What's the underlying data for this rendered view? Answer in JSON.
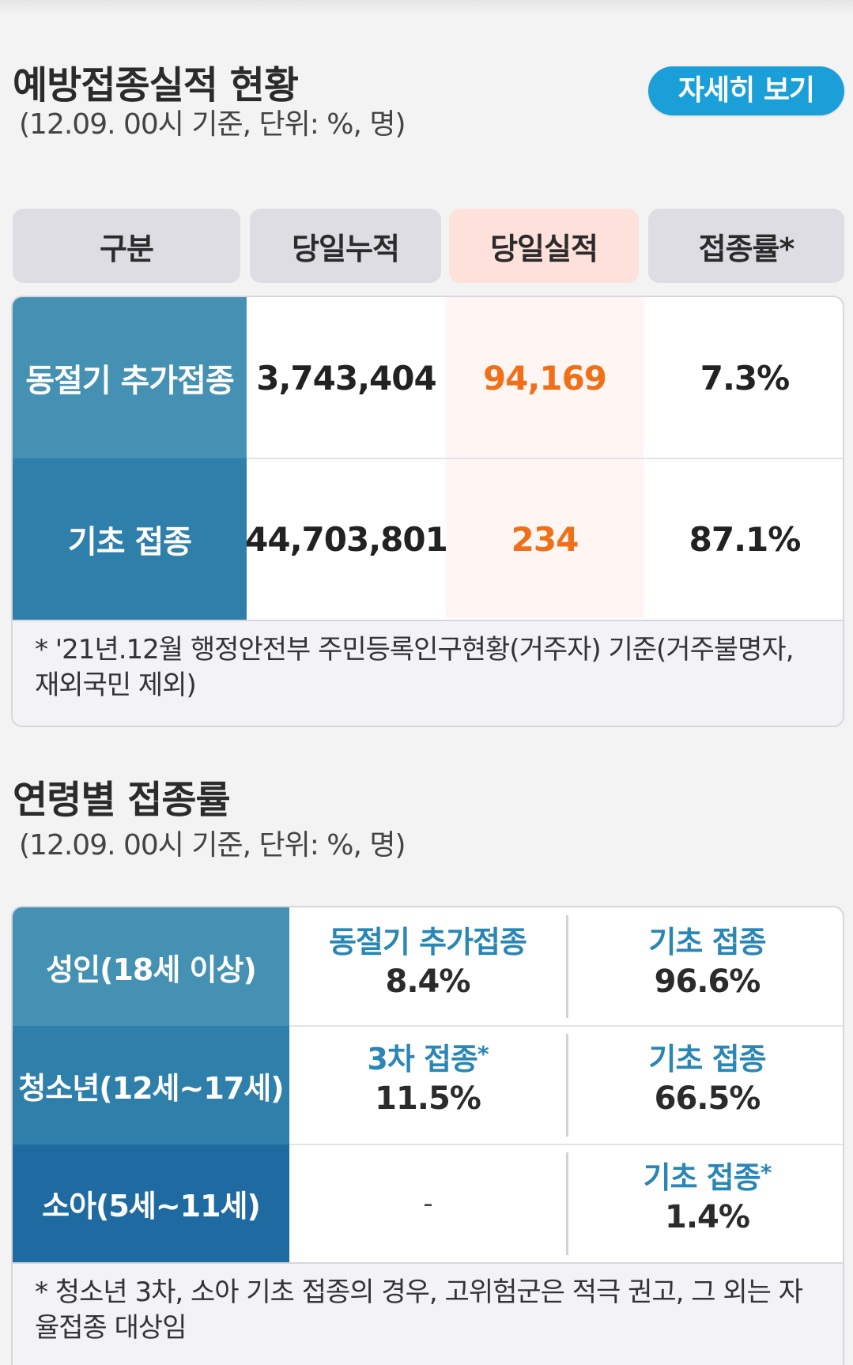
{
  "section1": {
    "title": "예방접종실적 현황",
    "subtitle": "(12.09. 00시 기준, 단위: %, 명)",
    "detail_button": "자세히 보기",
    "headers": [
      "구분",
      "당일누적",
      "당일실적",
      "접종률*"
    ],
    "rows": [
      {
        "label": "동절기 추가접종",
        "cumulative": "3,743,404",
        "today": "94,169",
        "rate": "7.3%"
      },
      {
        "label": "기초 접종",
        "cumulative": "44,703,801",
        "today": "234",
        "rate": "87.1%"
      }
    ],
    "note": "* '21년.12월 행정안전부 주민등록인구현황(거주자) 기준(거주불명자, 재외국민 제외)"
  },
  "section2": {
    "title": "연령별 접종률",
    "subtitle": "(12.09. 00시 기준, 단위: %, 명)",
    "rows": [
      {
        "label": "성인(18세 이상)",
        "col1": {
          "label": "동절기 추가접종",
          "star": "",
          "value": "8.4%"
        },
        "col2": {
          "label": "기초 접종",
          "star": "",
          "value": "96.6%"
        }
      },
      {
        "label": "청소년(12세~17세)",
        "col1": {
          "label": "3차 접종",
          "star": "*",
          "value": "11.5%"
        },
        "col2": {
          "label": "기초 접종",
          "star": "",
          "value": "66.5%"
        }
      },
      {
        "label": "소아(5세~11세)",
        "col1": {
          "dash": "-"
        },
        "col2": {
          "label": "기초 접종",
          "star": "*",
          "value": "1.4%"
        }
      }
    ],
    "note": "* 청소년 3차, 소아 기초 접종의 경우, 고위험군은 적극 권고, 그 외는 자율접종 대상임"
  },
  "colors": {
    "accent_button": "#1a9fd8",
    "label_row1": "#4591b3",
    "label_row2": "#2f7fab",
    "age_row1": "#4591b3",
    "age_row2": "#2f7fab",
    "age_row3": "#1f6ba1",
    "today_value": "#f07019",
    "age_label_text": "#2a86b4"
  }
}
